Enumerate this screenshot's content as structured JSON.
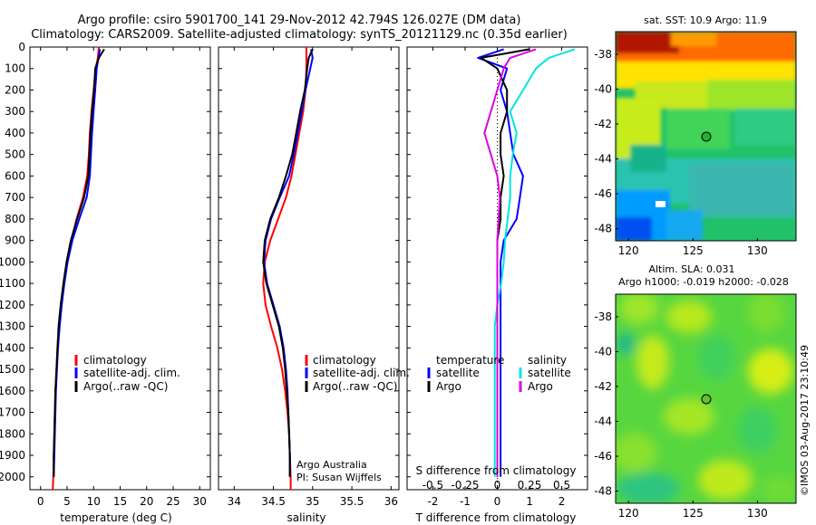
{
  "header": {
    "line1": "Argo profile: csiro 5901700_141 29-Nov-2012 42.794S 126.027E (DM data)",
    "line2": "Climatology: CARS2009. Satellite-adjusted climatology: synTS_20121129.nc (0.35d earlier)"
  },
  "colors": {
    "climatology": "#ff0000",
    "satellite": "#0000ff",
    "argo": "#000000",
    "salinity_satellite": "#00e5e5",
    "salinity_argo": "#e000e0"
  },
  "footer": {
    "agency": "Argo Australia",
    "pi": "PI: Susan Wijffels",
    "stamp": "©IMOS 03-Aug-2017 23:10:49"
  },
  "chart_data": [
    {
      "type": "line",
      "title": "",
      "xlabel": "temperature (deg C)",
      "ylabel": "",
      "xlim": [
        -2,
        32
      ],
      "ylim": [
        2060,
        0
      ],
      "xticks": [
        0,
        5,
        10,
        15,
        20,
        25,
        30
      ],
      "yticks": [
        0,
        100,
        200,
        300,
        400,
        500,
        600,
        700,
        800,
        900,
        1000,
        1100,
        1200,
        1300,
        1400,
        1500,
        1600,
        1700,
        1800,
        1900,
        2000
      ],
      "legend": [
        "climatology",
        "satellite-adj. clim.",
        "Argo(..raw -QC)"
      ],
      "series": [
        {
          "name": "climatology",
          "color": "#ff0000",
          "x": [
            11.0,
            10.8,
            10.4,
            10.0,
            9.6,
            9.3,
            9.1,
            8.8,
            8.0,
            6.8,
            5.8,
            5.0,
            4.4,
            3.9,
            3.5,
            3.2,
            3.0,
            2.8,
            2.7,
            2.6,
            2.5,
            2.4,
            2.3
          ],
          "y": [
            0,
            50,
            100,
            200,
            300,
            400,
            500,
            600,
            700,
            800,
            900,
            1000,
            1100,
            1200,
            1300,
            1400,
            1500,
            1600,
            1700,
            1800,
            1900,
            2000,
            2060
          ]
        },
        {
          "name": "satellite-adj. clim.",
          "color": "#0000ff",
          "x": [
            11.2,
            10.9,
            10.6,
            10.3,
            10.0,
            9.7,
            9.5,
            9.3,
            8.7,
            7.3,
            6.0,
            5.1,
            4.5,
            4.0,
            3.6,
            3.3,
            3.1,
            2.9,
            2.8,
            2.7,
            2.6,
            2.5
          ],
          "y": [
            10,
            50,
            100,
            200,
            300,
            400,
            500,
            600,
            700,
            800,
            900,
            1000,
            1100,
            1200,
            1300,
            1400,
            1500,
            1600,
            1700,
            1800,
            1900,
            2000
          ]
        },
        {
          "name": "Argo(..raw -QC)",
          "color": "#000000",
          "x": [
            12.0,
            11.0,
            10.3,
            10.1,
            9.7,
            9.4,
            9.2,
            9.0,
            8.2,
            6.9,
            5.7,
            4.9,
            4.3,
            3.8,
            3.4,
            3.2,
            3.0,
            2.8,
            2.7,
            2.6,
            2.5,
            2.5
          ],
          "y": [
            10,
            50,
            100,
            200,
            300,
            400,
            500,
            600,
            700,
            800,
            900,
            1000,
            1100,
            1200,
            1300,
            1400,
            1500,
            1600,
            1700,
            1800,
            1900,
            2000
          ]
        }
      ]
    },
    {
      "type": "line",
      "title": "",
      "xlabel": "salinity",
      "ylabel": "",
      "xlim": [
        33.8,
        36.1
      ],
      "ylim": [
        2060,
        0
      ],
      "xticks": [
        34,
        34.5,
        35,
        35.5,
        36
      ],
      "xticklabels": [
        "34",
        "34.5",
        "35",
        "35.5",
        "36"
      ],
      "legend": [
        "climatology",
        "satellite-adj. clim.",
        "Argo(..raw -QC)"
      ],
      "series": [
        {
          "name": "climatology",
          "color": "#ff0000",
          "x": [
            34.92,
            34.92,
            34.91,
            34.88,
            34.83,
            34.78,
            34.73,
            34.66,
            34.56,
            34.46,
            34.39,
            34.37,
            34.4,
            34.47,
            34.55,
            34.61,
            34.65,
            34.68,
            34.7,
            34.71,
            34.72,
            34.72
          ],
          "y": [
            0,
            100,
            200,
            300,
            400,
            500,
            600,
            700,
            800,
            900,
            1000,
            1100,
            1200,
            1300,
            1400,
            1500,
            1600,
            1700,
            1800,
            1900,
            2000,
            2060
          ]
        },
        {
          "name": "satellite-adj. clim.",
          "color": "#0000ff",
          "x": [
            34.98,
            35.0,
            34.97,
            34.91,
            34.86,
            34.81,
            34.76,
            34.7,
            34.58,
            34.47,
            34.4,
            34.38,
            34.42,
            34.5,
            34.58,
            34.63,
            34.66,
            34.68,
            34.69,
            34.7,
            34.71,
            34.71
          ],
          "y": [
            10,
            50,
            100,
            200,
            300,
            400,
            500,
            600,
            700,
            800,
            900,
            1000,
            1100,
            1200,
            1300,
            1400,
            1500,
            1600,
            1700,
            1800,
            1900,
            2000
          ]
        },
        {
          "name": "Argo(..raw -QC)",
          "color": "#000000",
          "x": [
            35.0,
            34.95,
            34.93,
            34.9,
            34.84,
            34.79,
            34.74,
            34.66,
            34.57,
            34.46,
            34.39,
            34.37,
            34.41,
            34.49,
            34.57,
            34.62,
            34.65,
            34.67,
            34.69,
            34.7,
            34.71,
            34.71
          ],
          "y": [
            10,
            50,
            100,
            200,
            300,
            400,
            500,
            600,
            700,
            800,
            900,
            1000,
            1100,
            1200,
            1300,
            1400,
            1500,
            1600,
            1700,
            1800,
            1900,
            2000
          ]
        }
      ]
    },
    {
      "type": "line",
      "title": "",
      "xlabel": "T difference from climatology",
      "xlabel2": "S difference from climatology",
      "xlim": [
        -2.8,
        2.8
      ],
      "ylim": [
        2060,
        0
      ],
      "xticks": [
        -2,
        -1,
        0,
        1,
        2
      ],
      "xticks2": [
        -0.5,
        -0.25,
        0,
        0.25,
        0.5
      ],
      "xticklabels2": [
        "-0.5",
        "-0.25",
        "0",
        "0.25",
        "0.5"
      ],
      "legend_groups": {
        "temperature": [
          "satellite",
          "Argo"
        ],
        "salinity": [
          "satellite",
          "Argo"
        ]
      },
      "series": [
        {
          "name": "temperature satellite",
          "color": "#0000ff",
          "x": [
            0.2,
            -0.6,
            0.3,
            0.1,
            0.3,
            0.4,
            0.5,
            0.8,
            0.7,
            0.6,
            0.2,
            0.1,
            0.1,
            0.1,
            0.1,
            0.1,
            0.1,
            0.1,
            0.1,
            0.1,
            0.1
          ],
          "y": [
            10,
            50,
            100,
            200,
            300,
            400,
            500,
            600,
            700,
            800,
            900,
            1000,
            1100,
            1200,
            1300,
            1400,
            1500,
            1600,
            1700,
            1800,
            2000
          ]
        },
        {
          "name": "temperature Argo",
          "color": "#000000",
          "x": [
            1.0,
            -0.5,
            0.0,
            0.3,
            0.3,
            0.1,
            0.1,
            0.2,
            0.1,
            0.1,
            0.0,
            0.0,
            0.0,
            0.0,
            0.0,
            0.0,
            0.0,
            0.0,
            0.0,
            0.0,
            0.0
          ],
          "y": [
            10,
            50,
            100,
            200,
            300,
            400,
            500,
            600,
            700,
            800,
            900,
            1000,
            1100,
            1200,
            1300,
            1400,
            1500,
            1600,
            1700,
            1800,
            2000
          ]
        },
        {
          "name": "salinity satellite",
          "color": "#00e5e5",
          "x": [
            0.6,
            0.4,
            0.3,
            0.2,
            0.1,
            0.15,
            0.12,
            0.1,
            0.1,
            0.08,
            0.06,
            0.05,
            0.03,
            0.0,
            -0.02,
            -0.02,
            -0.02,
            -0.02,
            -0.02,
            -0.02,
            -0.02
          ],
          "y": [
            10,
            50,
            100,
            200,
            300,
            400,
            500,
            600,
            700,
            800,
            900,
            1000,
            1100,
            1200,
            1300,
            1400,
            1500,
            1600,
            1700,
            1800,
            2000
          ]
        },
        {
          "name": "salinity Argo",
          "color": "#e000e0",
          "x": [
            0.3,
            0.1,
            0.05,
            0.0,
            -0.05,
            -0.1,
            -0.05,
            0.0,
            0.02,
            0.01,
            0.0,
            0.0,
            0.0,
            0.0,
            0.0,
            0.0,
            0.0,
            0.0,
            0.0,
            0.0,
            0.0
          ],
          "y": [
            10,
            50,
            100,
            200,
            300,
            400,
            500,
            600,
            700,
            800,
            900,
            1000,
            1100,
            1200,
            1300,
            1400,
            1500,
            1600,
            1700,
            1800,
            2000
          ]
        }
      ]
    },
    {
      "type": "heatmap",
      "title": "sat. SST: 10.9  Argo: 11.9",
      "xlim": [
        119,
        133
      ],
      "ylim": [
        -48.7,
        -36.7
      ],
      "xticks": [
        120,
        125,
        130
      ],
      "yticks": [
        -38,
        -40,
        -42,
        -44,
        -46,
        -48
      ],
      "marker": {
        "lon": 126.027,
        "lat": -42.794
      }
    },
    {
      "type": "heatmap",
      "title": "Altim. SLA: 0.031",
      "title2": "Argo h1000: -0.019 h2000: -0.028",
      "xlim": [
        119,
        133
      ],
      "ylim": [
        -48.7,
        -36.7
      ],
      "xticks": [
        120,
        125,
        130
      ],
      "yticks": [
        -38,
        -40,
        -42,
        -44,
        -46,
        -48
      ],
      "marker": {
        "lon": 126.027,
        "lat": -42.794
      }
    }
  ]
}
